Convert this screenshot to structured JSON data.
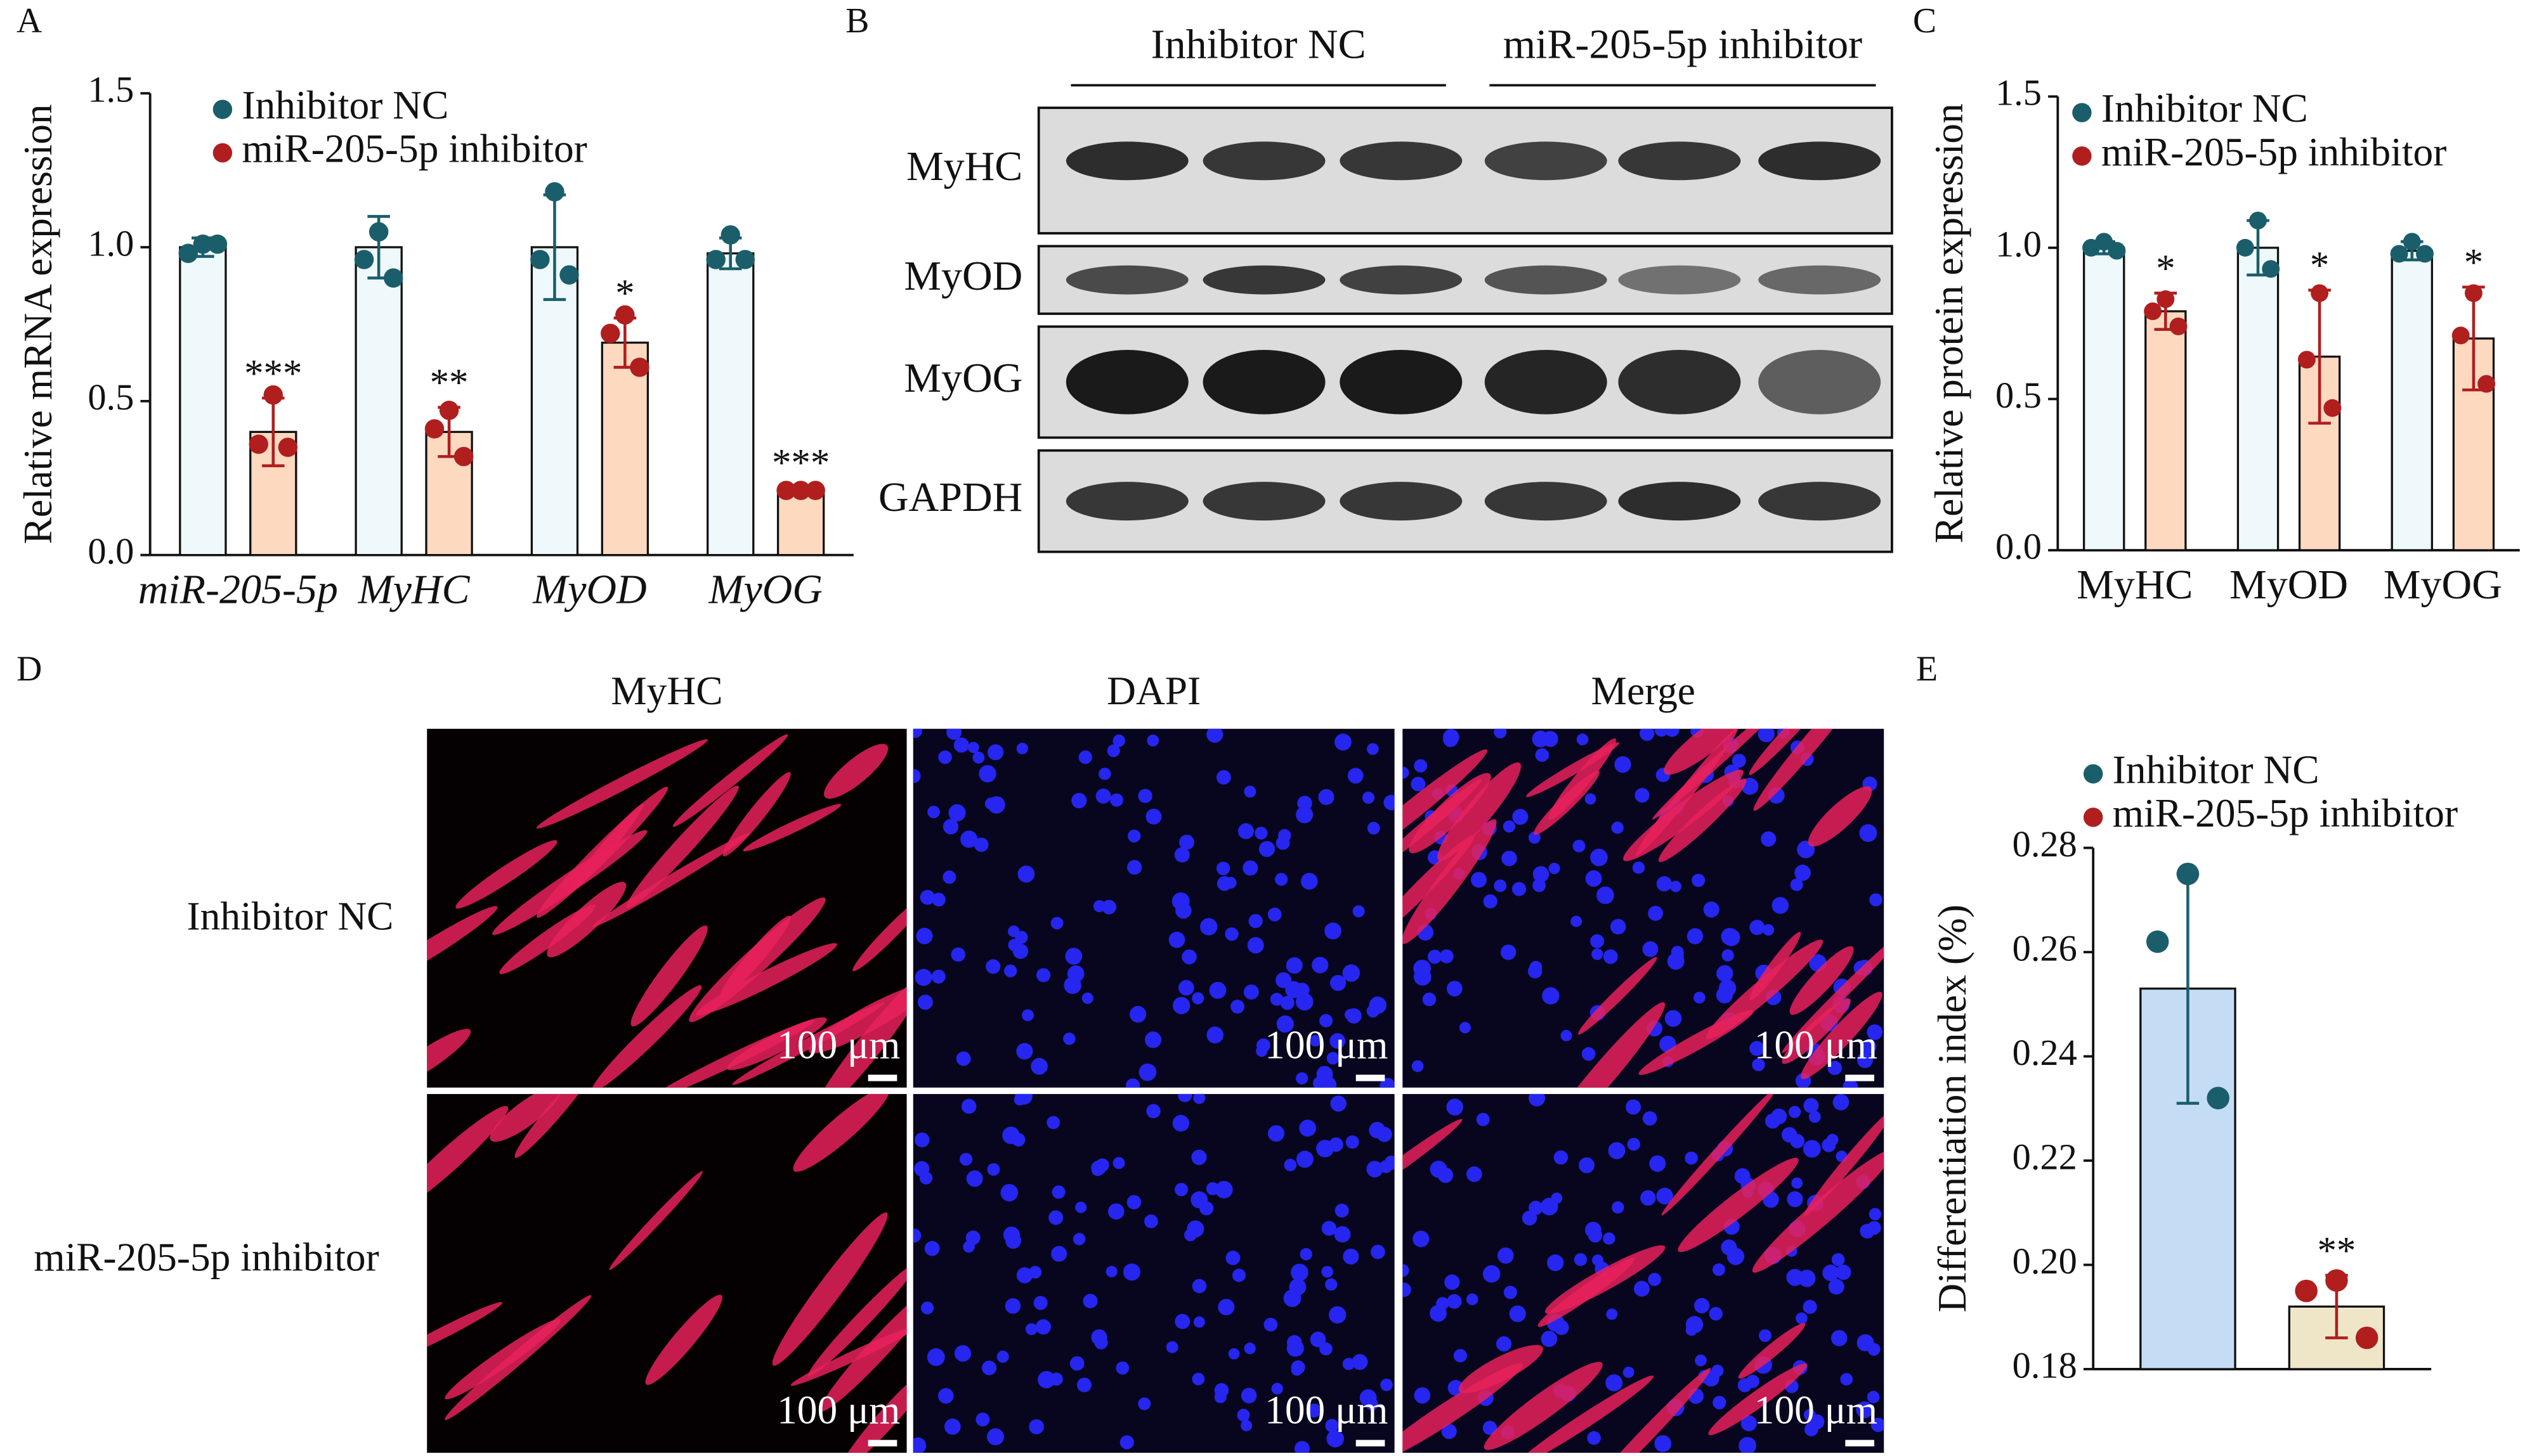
{
  "panel_labels": [
    "A",
    "B",
    "C",
    "D",
    "E"
  ],
  "chart_data": [
    {
      "type": "bar",
      "ylabel": "Relative mRNA expression",
      "categories": [
        "miR-205-5p",
        "MyHC",
        "MyOD",
        "MyOG"
      ],
      "ylim": [
        0,
        1.5
      ],
      "yticks": [
        {
          "value": 0,
          "label": "0.0"
        },
        0.5,
        {
          "value": 1,
          "label": "1.0"
        },
        1.5
      ],
      "legend": "upper left",
      "series": [
        {
          "name": "Inhibitor NC",
          "color": "#1b5e6b",
          "fill": "#eff9fb",
          "values": [
            1.0,
            1.0,
            1.0,
            0.98
          ],
          "errors": [
            0.03,
            0.1,
            0.17,
            0.05
          ],
          "points": [
            [
              1.01,
              0.98,
              1.01
            ],
            [
              1.05,
              0.96,
              0.9
            ],
            [
              1.18,
              0.96,
              0.91
            ],
            [
              1.04,
              0.96,
              0.96
            ]
          ]
        },
        {
          "name": "miR-205-5p inhibitor",
          "color": "#b01e1e",
          "fill": "#fdd9c0",
          "values": [
            0.4,
            0.4,
            0.69,
            0.21
          ],
          "errors": [
            0.11,
            0.08,
            0.08,
            0.01
          ],
          "points": [
            [
              0.52,
              0.36,
              0.35
            ],
            [
              0.47,
              0.41,
              0.32
            ],
            [
              0.78,
              0.72,
              0.61
            ],
            [
              0.21,
              0.21,
              0.21
            ]
          ],
          "annotations": [
            "***",
            "**",
            "*",
            "***"
          ]
        }
      ]
    },
    {
      "type": "bar",
      "ylabel": "Relative protein expression",
      "categories": [
        "MyHC",
        "MyOD",
        "MyOG"
      ],
      "ylim": [
        0,
        1.5
      ],
      "yticks": [
        {
          "value": 0,
          "label": "0.0"
        },
        0.5,
        {
          "value": 1,
          "label": "1.0"
        },
        1.5
      ],
      "legend": "upper left",
      "series": [
        {
          "name": "Inhibitor NC",
          "color": "#1b5e6b",
          "fill": "#eff9fb",
          "values": [
            1.0,
            1.0,
            0.99
          ],
          "errors": [
            0.02,
            0.09,
            0.03
          ],
          "points": [
            [
              1.02,
              1.0,
              0.99
            ],
            [
              1.09,
              1.0,
              0.93
            ],
            [
              1.02,
              0.98,
              0.98
            ]
          ]
        },
        {
          "name": "miR-205-5p inhibitor",
          "color": "#b01e1e",
          "fill": "#fdd9c0",
          "values": [
            0.79,
            0.64,
            0.7
          ],
          "errors": [
            0.06,
            0.22,
            0.17
          ],
          "points": [
            [
              0.83,
              0.79,
              0.74
            ],
            [
              0.85,
              0.63,
              0.47
            ],
            [
              0.85,
              0.71,
              0.55
            ]
          ],
          "annotations": [
            "*",
            "*",
            "*"
          ]
        }
      ]
    },
    {
      "type": "bar",
      "ylabel": "Differentiation index (%)",
      "categories": [
        null
      ],
      "ylim": [
        0.18,
        0.28
      ],
      "yticks": [
        0.18,
        {
          "value": 0.2,
          "label": "0.20"
        },
        0.22,
        0.24,
        0.26,
        0.28
      ],
      "legend": "upper left",
      "series": [
        {
          "name": "Inhibitor NC",
          "color": "#1b5e6b",
          "fill": "#c5dcf5",
          "values": [
            0.253
          ],
          "errors": [
            0.022
          ],
          "points": [
            [
              0.275,
              0.262,
              0.232
            ]
          ]
        },
        {
          "name": "miR-205-5p inhibitor",
          "color": "#b01e1e",
          "fill": "#efe6c8",
          "values": [
            0.192
          ],
          "errors": [
            0.006
          ],
          "points": [
            [
              0.197,
              0.195,
              0.186
            ]
          ],
          "annotations": [
            "**"
          ]
        }
      ]
    }
  ],
  "blot": {
    "groups": [
      "Inhibitor NC",
      "miR-205-5p inhibitor"
    ],
    "rows": [
      "MyHC",
      "MyOD",
      "MyOG",
      "GAPDH"
    ]
  },
  "staining": {
    "columns": [
      "MyHC",
      "DAPI",
      "Merge"
    ],
    "rows": [
      "Inhibitor NC",
      "miR-205-5p inhibitor"
    ],
    "scale_bar": "100 μm"
  }
}
